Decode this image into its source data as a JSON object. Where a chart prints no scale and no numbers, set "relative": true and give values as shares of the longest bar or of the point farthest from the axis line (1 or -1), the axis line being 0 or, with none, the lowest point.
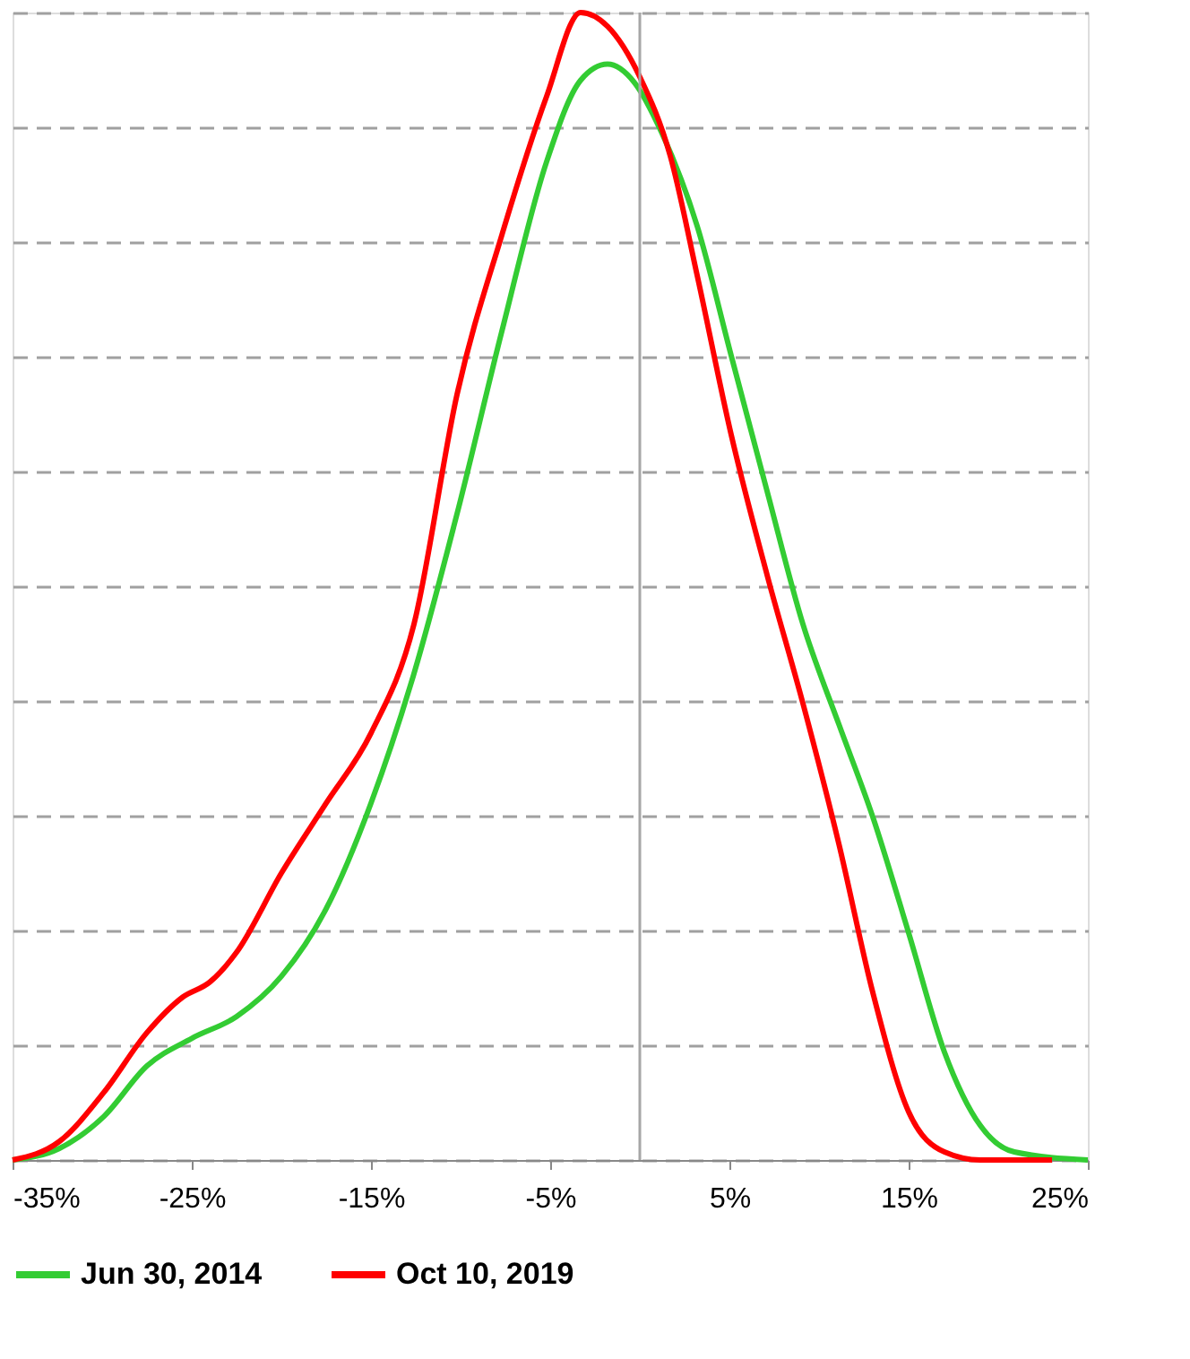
{
  "chart_data": {
    "type": "line",
    "relative": true,
    "xlim": [
      -35,
      25
    ],
    "xticks": [
      {
        "value": -35,
        "label": "-35%"
      },
      {
        "value": -25,
        "label": "-25%"
      },
      {
        "value": -15,
        "label": "-15%"
      },
      {
        "value": -5,
        "label": "-5%"
      },
      {
        "value": 5,
        "label": "5%"
      },
      {
        "value": 15,
        "label": "15%"
      },
      {
        "value": 25,
        "label": "25%"
      }
    ],
    "tick_labels": "x",
    "grid": "y",
    "legend": "bottom",
    "line_style": "solid",
    "marker": "none",
    "ref_lines": [
      {
        "axis": "x",
        "value": 0,
        "color": "#a6a6a6"
      }
    ],
    "series": [
      {
        "name": "Jun 30, 2014",
        "color": "#33cc33",
        "x": [
          -35,
          -32.4,
          -29.9,
          -27.5,
          -25,
          -22.5,
          -20,
          -17.5,
          -15,
          -12.6,
          -10.2,
          -7.7,
          -5.2,
          -3.3,
          -1.8,
          -0.3,
          1.2,
          3.2,
          5.1,
          7.1,
          9.1,
          11.1,
          13,
          15,
          17,
          19,
          20.9,
          25
        ],
        "values": [
          0,
          0.01,
          0.038,
          0.082,
          0.106,
          0.125,
          0.16,
          0.219,
          0.311,
          0.424,
          0.563,
          0.722,
          0.87,
          0.941,
          0.955,
          0.939,
          0.896,
          0.814,
          0.701,
          0.583,
          0.467,
          0.38,
          0.299,
          0.198,
          0.094,
          0.03,
          0.007,
          0
        ]
      },
      {
        "name": "Oct 10, 2019",
        "color": "#ff0000",
        "x": [
          -35,
          -32.4,
          -29.9,
          -27.5,
          -25.5,
          -24,
          -22.5,
          -20,
          -17.5,
          -15,
          -12.6,
          -10.2,
          -7.7,
          -5.2,
          -3.3,
          -1.8,
          0,
          1.7,
          3.2,
          5.1,
          7.1,
          9.1,
          11.1,
          13,
          15,
          17,
          19,
          23
        ],
        "values": [
          0,
          0.016,
          0.059,
          0.111,
          0.142,
          0.155,
          0.181,
          0.25,
          0.311,
          0.372,
          0.467,
          0.667,
          0.806,
          0.927,
          1.0,
          0.988,
          0.944,
          0.875,
          0.771,
          0.632,
          0.51,
          0.398,
          0.276,
          0.146,
          0.042,
          0.007,
          0,
          0
        ]
      }
    ]
  }
}
